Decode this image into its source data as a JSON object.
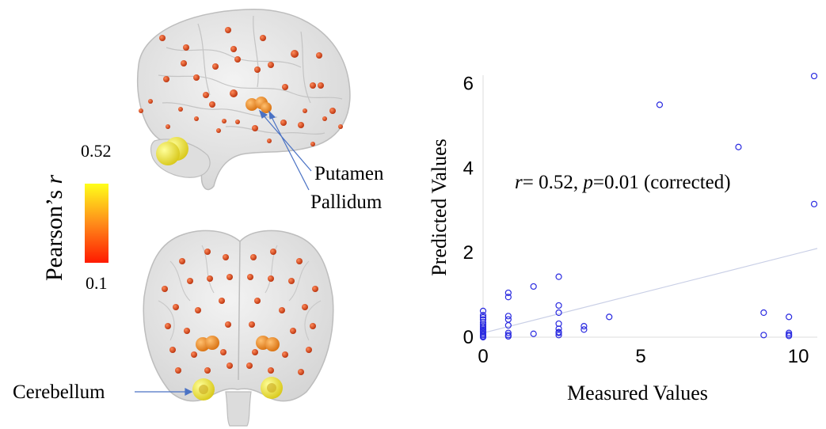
{
  "colorbar": {
    "label_main": "Pearson’s ",
    "label_var": "r",
    "max_label": "0.52",
    "min_label": "0.1",
    "color_low": "#ff1a00",
    "color_mid": "#ff8c1a",
    "color_high": "#ffff1a"
  },
  "annotations": {
    "putamen": "Putamen",
    "pallidum": "Pallidum",
    "cerebellum": "Cerebellum"
  },
  "brain": {
    "views": [
      "sagittal",
      "coronal"
    ],
    "surface_color": "#e6e6e6",
    "outline_color": "#bdbdbd",
    "node_color": "#d8400f",
    "putamen_color": "#f08c2a",
    "cerebellum_color": "#f2ee3a"
  },
  "stats": {
    "r_var": "r",
    "r_text": "= 0.52, ",
    "p_var": "p",
    "p_text": "=0.01 (corrected)"
  },
  "chart_data": {
    "type": "scatter",
    "xlabel": "Measured Values",
    "ylabel": "Predicted Values",
    "xlim": [
      0,
      10.6
    ],
    "ylim": [
      0,
      6.2
    ],
    "xticks": [
      0,
      5,
      10
    ],
    "yticks": [
      0,
      2,
      4,
      6
    ],
    "grid": false,
    "marker_color": "#2a2ae0",
    "fit_line_color": "#c9cfe6",
    "fit_line": {
      "x": [
        0,
        10.6
      ],
      "y": [
        0.1,
        2.1
      ]
    },
    "series": [
      {
        "x": [
          0,
          0,
          0,
          0,
          0,
          0,
          0,
          0,
          0,
          0,
          0,
          0,
          0,
          0,
          0,
          0.8,
          0.8,
          0.8,
          0.8,
          0.8,
          0.8,
          0.8,
          0.8,
          1.6,
          1.6,
          2.4,
          2.4,
          2.4,
          2.4,
          2.4,
          2.4,
          2.4,
          2.4,
          3.2,
          3.2,
          4.0,
          5.6,
          8.1,
          8.9,
          8.9,
          9.7,
          9.7,
          9.7,
          9.7,
          10.5,
          10.5
        ],
        "y": [
          0,
          0.02,
          0.05,
          0.08,
          0.12,
          0.15,
          0.18,
          0.22,
          0.26,
          0.3,
          0.35,
          0.42,
          0.47,
          0.52,
          0.62,
          0.02,
          0.05,
          0.1,
          0.28,
          0.42,
          0.5,
          0.95,
          1.05,
          0.08,
          1.2,
          0.05,
          0.12,
          0.2,
          0.32,
          0.58,
          0.75,
          1.43,
          0.1,
          0.18,
          0.26,
          0.48,
          5.5,
          4.5,
          0.05,
          0.58,
          0.03,
          0.06,
          0.1,
          0.48,
          3.15,
          6.18
        ]
      }
    ]
  }
}
